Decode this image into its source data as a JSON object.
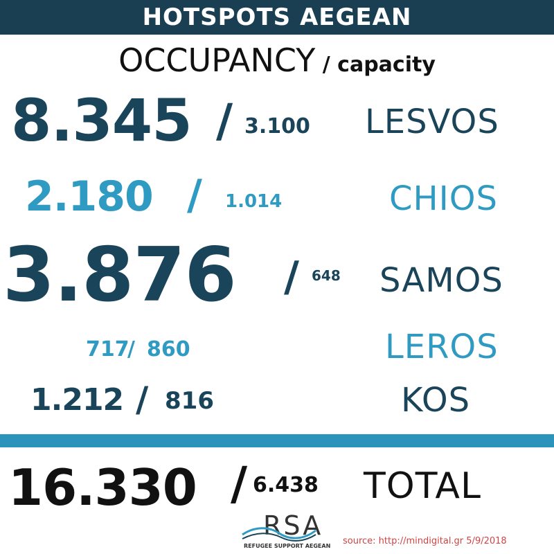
{
  "header": {
    "title": "HOTSPOTS AEGEAN"
  },
  "subtitle": {
    "main": "OCCUPANCY",
    "sep": " / ",
    "secondary": "capacity"
  },
  "separator": "/",
  "islands": [
    {
      "name": "LESVOS",
      "occupancy": "8.345",
      "capacity": "3.100",
      "color": "#1a4459"
    },
    {
      "name": "CHIOS",
      "occupancy": "2.180",
      "capacity": "1.014",
      "color": "#2f9bc2"
    },
    {
      "name": "SAMOS",
      "occupancy": "3.876",
      "capacity": "648",
      "color": "#1a4459"
    },
    {
      "name": "LEROS",
      "occupancy": "717",
      "capacity": "860",
      "color": "#2f9bc2"
    },
    {
      "name": "KOS",
      "occupancy": "1.212",
      "capacity": "816",
      "color": "#1a4459"
    }
  ],
  "total": {
    "label": "TOTAL",
    "occupancy": "16.330",
    "capacity": "6.438"
  },
  "logo": {
    "text": "RSA",
    "subtitle": "REFUGEE SUPPORT AEGEAN"
  },
  "source": "source: http://mindigital.gr 5/9/2018",
  "colors": {
    "banner": "#1a3f52",
    "dark": "#1a4459",
    "light": "#2f9bc2",
    "divider": "#2c93ba",
    "source": "#d14343"
  }
}
